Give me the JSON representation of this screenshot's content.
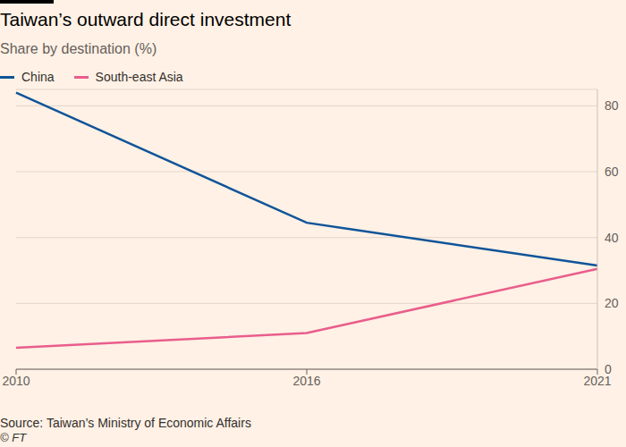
{
  "chart_data": {
    "type": "line",
    "title": "Taiwan’s outward direct investment",
    "subtitle": "Share by destination (%)",
    "categories": [
      "2010",
      "2016",
      "2021"
    ],
    "series": [
      {
        "name": "China",
        "color": "#0f5499",
        "values": [
          84,
          44.5,
          31.5
        ]
      },
      {
        "name": "South-east Asia",
        "color": "#e95d8c",
        "values": [
          6.5,
          11,
          30.5
        ]
      }
    ],
    "ylim": [
      0,
      85
    ],
    "yticks": [
      0,
      20,
      40,
      60,
      80
    ],
    "grid": true,
    "legend": "top-left",
    "source": "Source: Taiwan’s Ministry of Economic Affairs",
    "credit": "© FT"
  }
}
